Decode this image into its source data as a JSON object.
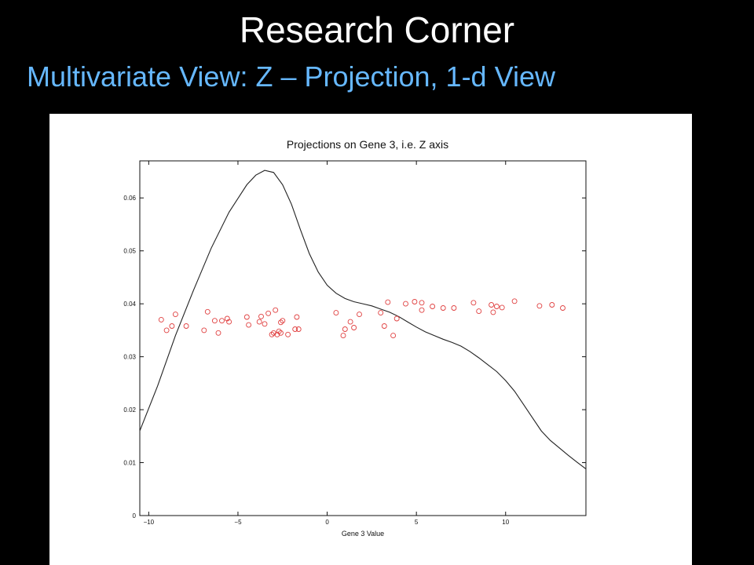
{
  "slide": {
    "title": "Research Corner",
    "subtitle": "Multivariate View:  Z – Projection, 1-d View"
  },
  "colors": {
    "background": "#000000",
    "title": "#ffffff",
    "subtitle": "#66b8ff",
    "panel": "#ffffff",
    "curve": "#222222",
    "points": "#e04040"
  },
  "chart_data": {
    "type": "line",
    "title": "Projections on Gene 3, i.e. Z axis",
    "xlabel": "Gene 3 Value",
    "ylabel": "",
    "xlim": [
      -10.5,
      14.5
    ],
    "ylim": [
      0,
      0.067
    ],
    "x_ticks": [
      -10,
      -5,
      0,
      5,
      10
    ],
    "x_tick_labels": [
      "−10",
      "−5",
      "0",
      "5",
      "10"
    ],
    "y_ticks": [
      0,
      0.01,
      0.02,
      0.03,
      0.04,
      0.05,
      0.06
    ],
    "y_tick_labels": [
      "0",
      "0.01",
      "0.02",
      "0.03",
      "0.04",
      "0.05",
      "0.06"
    ],
    "grid": false,
    "legend": false,
    "series": [
      {
        "kind": "line",
        "x": [
          -10.5,
          -9.5,
          -8.5,
          -7.5,
          -6.5,
          -5.5,
          -4.5,
          -4.0,
          -3.5,
          -3.0,
          -2.5,
          -2.0,
          -1.5,
          -1.0,
          -0.5,
          0,
          0.5,
          1,
          1.5,
          2,
          2.5,
          3,
          3.5,
          4,
          4.5,
          5,
          5.5,
          6,
          6.5,
          7,
          7.5,
          8,
          8.5,
          9,
          9.5,
          10,
          10.5,
          11,
          11.5,
          12,
          12.5,
          13,
          13.5,
          14,
          14.5
        ],
        "y": [
          0.016,
          0.0245,
          0.034,
          0.0425,
          0.0505,
          0.0573,
          0.0625,
          0.0643,
          0.0652,
          0.0648,
          0.0625,
          0.0588,
          0.054,
          0.0495,
          0.046,
          0.0435,
          0.042,
          0.041,
          0.0404,
          0.04,
          0.0396,
          0.039,
          0.0384,
          0.0376,
          0.0366,
          0.0356,
          0.0347,
          0.034,
          0.0333,
          0.0327,
          0.032,
          0.031,
          0.0298,
          0.0285,
          0.0272,
          0.0255,
          0.0235,
          0.021,
          0.0185,
          0.016,
          0.0142,
          0.0128,
          0.0114,
          0.0101,
          0.0088
        ]
      },
      {
        "kind": "scatter",
        "x": [
          -9.3,
          -9.0,
          -8.7,
          -8.5,
          -7.9,
          -6.9,
          -6.7,
          -6.3,
          -6.1,
          -5.9,
          -5.6,
          -5.5,
          -4.5,
          -4.4,
          -3.8,
          -3.7,
          -3.5,
          -3.3,
          -3.0,
          -3.1,
          -2.9,
          -2.8,
          -2.6,
          -2.5,
          -2.6,
          -2.7,
          -2.2,
          -1.8,
          -1.7,
          -1.6,
          0.5,
          0.9,
          1.0,
          1.3,
          1.5,
          1.8,
          3.0,
          3.2,
          3.4,
          3.7,
          3.9,
          4.4,
          4.9,
          5.3,
          5.3,
          5.9,
          6.5,
          7.1,
          8.2,
          8.5,
          9.2,
          9.3,
          9.5,
          9.8,
          10.5,
          11.9,
          12.6,
          13.2
        ],
        "y": [
          0.037,
          0.035,
          0.0358,
          0.038,
          0.0358,
          0.035,
          0.0385,
          0.0368,
          0.0345,
          0.0368,
          0.0372,
          0.0366,
          0.0375,
          0.036,
          0.0366,
          0.0376,
          0.0362,
          0.0382,
          0.0345,
          0.0342,
          0.0388,
          0.0342,
          0.0345,
          0.0368,
          0.0365,
          0.0348,
          0.0342,
          0.0352,
          0.0375,
          0.0352,
          0.0383,
          0.034,
          0.0352,
          0.0366,
          0.0355,
          0.038,
          0.0383,
          0.0358,
          0.0403,
          0.034,
          0.0372,
          0.04,
          0.0404,
          0.0388,
          0.0402,
          0.0395,
          0.0392,
          0.0392,
          0.0402,
          0.0386,
          0.0398,
          0.0384,
          0.0395,
          0.0393,
          0.0405,
          0.0396,
          0.0398,
          0.0392
        ]
      }
    ]
  }
}
